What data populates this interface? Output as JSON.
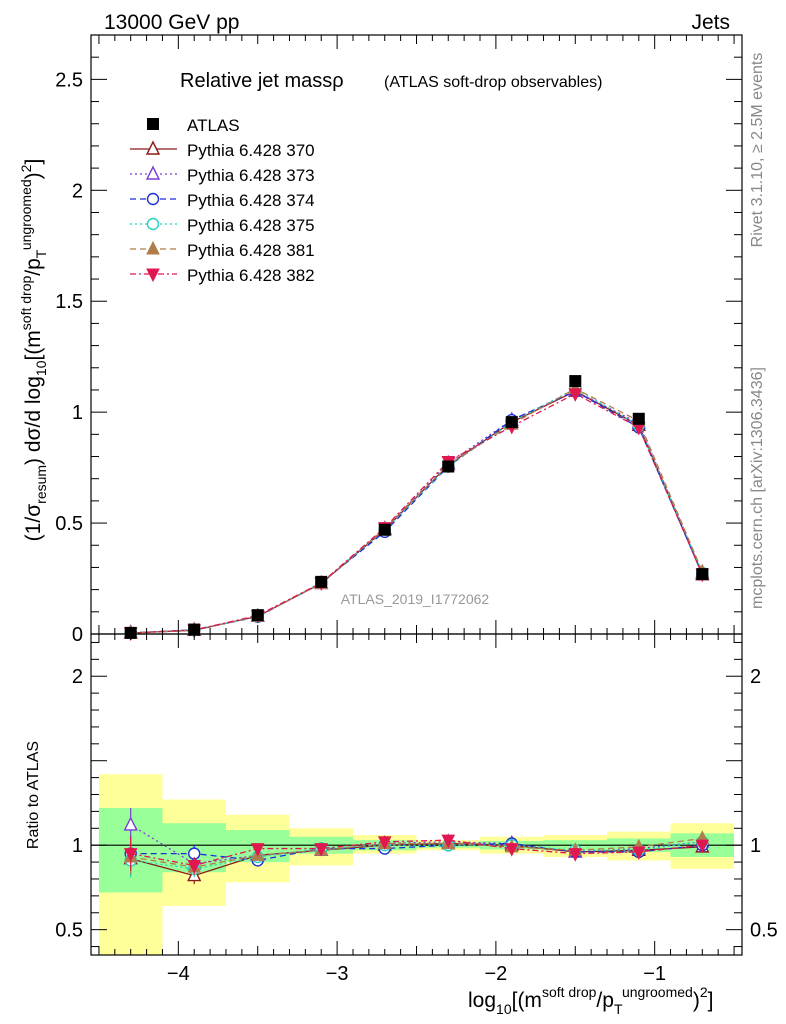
{
  "header": {
    "left": "13000 GeV pp",
    "right": "Jets"
  },
  "side_texts": {
    "rivet": "Rivet 3.1.10, ≥ 2.5M events",
    "mcplots": "mcplots.cern.ch [arXiv:1306.3436]"
  },
  "chart_data": {
    "type": "line",
    "title": "Relative jet massρ",
    "subtitle": "(ATLAS soft-drop observables)",
    "watermark": "ATLAS_2019_I1772062",
    "xlabel": "log10[(m^{soft drop}/p_T^{ungroomed})^2]",
    "ylabel_main": "(1/σ_resum) dσ/d log10[(m^{soft drop}/p_T^{ungroomed})^2]",
    "ylabel_ratio": "Ratio to ATLAS",
    "xlim": [
      -4.55,
      -0.45
    ],
    "ylim_main": [
      0,
      2.7
    ],
    "ylim_ratio": [
      0.35,
      2.25
    ],
    "x_ticks": [
      -4,
      -3,
      -2,
      -1
    ],
    "x_tick_labels": [
      "−4",
      "−3",
      "−2",
      "−1"
    ],
    "y_ticks_main": [
      0,
      0.5,
      1,
      1.5,
      2,
      2.5
    ],
    "y_tick_labels_main": [
      "0",
      "0.5",
      "1",
      "1.5",
      "2",
      "2.5"
    ],
    "y_ticks_ratio": [
      0.5,
      1,
      2
    ],
    "y_tick_labels_ratio": [
      "0.5",
      "1",
      "2"
    ],
    "bins": [
      -4.5,
      -4.1,
      -3.7,
      -3.3,
      -2.9,
      -2.5,
      -2.1,
      -1.7,
      -1.3,
      -0.9,
      -0.5
    ],
    "x": [
      -4.3,
      -3.9,
      -3.5,
      -3.1,
      -2.7,
      -2.3,
      -1.9,
      -1.5,
      -1.1,
      -0.7
    ],
    "atlas": {
      "name": "ATLAS",
      "values": [
        0.005,
        0.02,
        0.085,
        0.235,
        0.47,
        0.755,
        0.955,
        1.14,
        0.97,
        0.27
      ]
    },
    "band_inner": [
      [
        0.72,
        1.22
      ],
      [
        0.84,
        1.13
      ],
      [
        0.9,
        1.09
      ],
      [
        0.95,
        1.05
      ],
      [
        0.97,
        1.03
      ],
      [
        0.985,
        1.015
      ],
      [
        0.975,
        1.025
      ],
      [
        0.97,
        1.03
      ],
      [
        0.96,
        1.04
      ],
      [
        0.93,
        1.07
      ]
    ],
    "band_outer": [
      [
        0.3,
        1.42
      ],
      [
        0.64,
        1.27
      ],
      [
        0.78,
        1.18
      ],
      [
        0.88,
        1.1
      ],
      [
        0.95,
        1.06
      ],
      [
        0.97,
        1.03
      ],
      [
        0.95,
        1.05
      ],
      [
        0.93,
        1.06
      ],
      [
        0.91,
        1.08
      ],
      [
        0.86,
        1.13
      ]
    ],
    "series": [
      {
        "name": "Pythia 6.428 370",
        "color": "#8b1a1a",
        "marker": "triangle-open",
        "dash": "",
        "ratio": [
          0.92,
          0.82,
          0.94,
          0.97,
          1.0,
          1.01,
          1.0,
          0.96,
          0.97,
          0.99
        ]
      },
      {
        "name": "Pythia 6.428 373",
        "color": "#7b3fd1",
        "marker": "triangle-open",
        "dash": "2,3",
        "ratio": [
          1.12,
          0.89,
          0.94,
          0.97,
          1.01,
          1.02,
          1.01,
          0.96,
          0.98,
          1.02
        ]
      },
      {
        "name": "Pythia 6.428 374",
        "color": "#1f2fd6",
        "marker": "circle-open",
        "dash": "6,4",
        "ratio": [
          0.95,
          0.95,
          0.91,
          0.98,
          0.98,
          1.0,
          1.01,
          0.96,
          0.96,
          1.0
        ]
      },
      {
        "name": "Pythia 6.428 375",
        "color": "#22d3c5",
        "marker": "circle-open",
        "dash": "2,3",
        "ratio": [
          0.91,
          0.86,
          0.93,
          0.98,
          1.0,
          1.0,
          1.0,
          0.97,
          0.97,
          1.02
        ]
      },
      {
        "name": "Pythia 6.428 381",
        "color": "#b07d4a",
        "marker": "triangle-filled",
        "dash": "6,4",
        "ratio": [
          0.93,
          0.87,
          0.94,
          0.97,
          1.01,
          1.01,
          0.99,
          0.97,
          0.99,
          1.04
        ]
      },
      {
        "name": "Pythia 6.428 382",
        "color": "#e0184f",
        "marker": "triangle-down-filled",
        "dash": "6,3,2,3",
        "ratio": [
          0.95,
          0.88,
          0.98,
          0.98,
          1.02,
          1.03,
          0.98,
          0.95,
          0.96,
          1.0
        ]
      }
    ]
  }
}
